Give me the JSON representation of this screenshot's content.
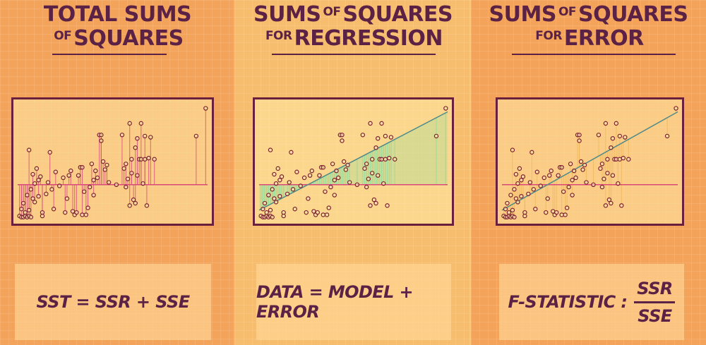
{
  "panels": {
    "sst": {
      "title_line1": "TOTAL SUMS",
      "title_line2_small": "OF",
      "title_line2_big": "SQUARES",
      "formula": "SST = SSR + SSE"
    },
    "ssr": {
      "title_line1_big": "SUMS",
      "title_line1_small": "OF",
      "title_line1_big2": "SQUARES",
      "title_line2_small": "FOR",
      "title_line2_big": "REGRESSION",
      "formula": "DATA = MODEL + ERROR"
    },
    "sse": {
      "title_line1_big": "SUMS",
      "title_line1_small": "OF",
      "title_line1_big2": "SQUARES",
      "title_line2_small": "FOR",
      "title_line2_big": "ERROR",
      "formula_label": "F-STATISTIC :",
      "numerator": "SSR",
      "denominator": "SSE"
    }
  },
  "colors": {
    "ink": "#5b2246",
    "point": "#7a1f2e",
    "mean_line": "#d94a7a",
    "regression_line": "#4f8a8a",
    "ssr_fill": "#9fdc9a",
    "sse_fill": "#f0b85a"
  },
  "chart_data": {
    "type": "scatter",
    "x_range": [
      0,
      100
    ],
    "y_range": [
      0,
      100
    ],
    "mean_y": 30,
    "regression": {
      "intercept": 8,
      "slope": 0.85
    },
    "points": [
      [
        1,
        3
      ],
      [
        2,
        2
      ],
      [
        3,
        2
      ],
      [
        4,
        3
      ],
      [
        5,
        2
      ],
      [
        6,
        3
      ],
      [
        7,
        2
      ],
      [
        2,
        9
      ],
      [
        4,
        6
      ],
      [
        6,
        8
      ],
      [
        3,
        14
      ],
      [
        5,
        21
      ],
      [
        7,
        26
      ],
      [
        8,
        18
      ],
      [
        6,
        60
      ],
      [
        8,
        39
      ],
      [
        9,
        31
      ],
      [
        9,
        15
      ],
      [
        10,
        44
      ],
      [
        11,
        34
      ],
      [
        11,
        20
      ],
      [
        12,
        37
      ],
      [
        13,
        6
      ],
      [
        13,
        3
      ],
      [
        15,
        22
      ],
      [
        16,
        32
      ],
      [
        17,
        58
      ],
      [
        18,
        26
      ],
      [
        19,
        9
      ],
      [
        20,
        41
      ],
      [
        22,
        29
      ],
      [
        24,
        36
      ],
      [
        25,
        6
      ],
      [
        26,
        18
      ],
      [
        27,
        38
      ],
      [
        28,
        42
      ],
      [
        29,
        7
      ],
      [
        30,
        4
      ],
      [
        31,
        6
      ],
      [
        32,
        38
      ],
      [
        33,
        45
      ],
      [
        34,
        45
      ],
      [
        34,
        4
      ],
      [
        35,
        24
      ],
      [
        36,
        4
      ],
      [
        37,
        10
      ],
      [
        38,
        28
      ],
      [
        39,
        48
      ],
      [
        40,
        34
      ],
      [
        40,
        21
      ],
      [
        41,
        42
      ],
      [
        42,
        36
      ],
      [
        43,
        73
      ],
      [
        44,
        73
      ],
      [
        44,
        68
      ],
      [
        45,
        50
      ],
      [
        46,
        43
      ],
      [
        47,
        47
      ],
      [
        48,
        32
      ],
      [
        52,
        30
      ],
      [
        55,
        73
      ],
      [
        56,
        44
      ],
      [
        57,
        48
      ],
      [
        57,
        28
      ],
      [
        58,
        35
      ],
      [
        59,
        83
      ],
      [
        59,
        12
      ],
      [
        60,
        52
      ],
      [
        60,
        40
      ],
      [
        61,
        17
      ],
      [
        62,
        62
      ],
      [
        62,
        14
      ],
      [
        63,
        70
      ],
      [
        63,
        38
      ],
      [
        64,
        52
      ],
      [
        65,
        83
      ],
      [
        65,
        52
      ],
      [
        66,
        31
      ],
      [
        67,
        72
      ],
      [
        67,
        52
      ],
      [
        68,
        12
      ],
      [
        69,
        53
      ],
      [
        70,
        71
      ],
      [
        72,
        52
      ],
      [
        94,
        72
      ],
      [
        99,
        96
      ]
    ]
  }
}
